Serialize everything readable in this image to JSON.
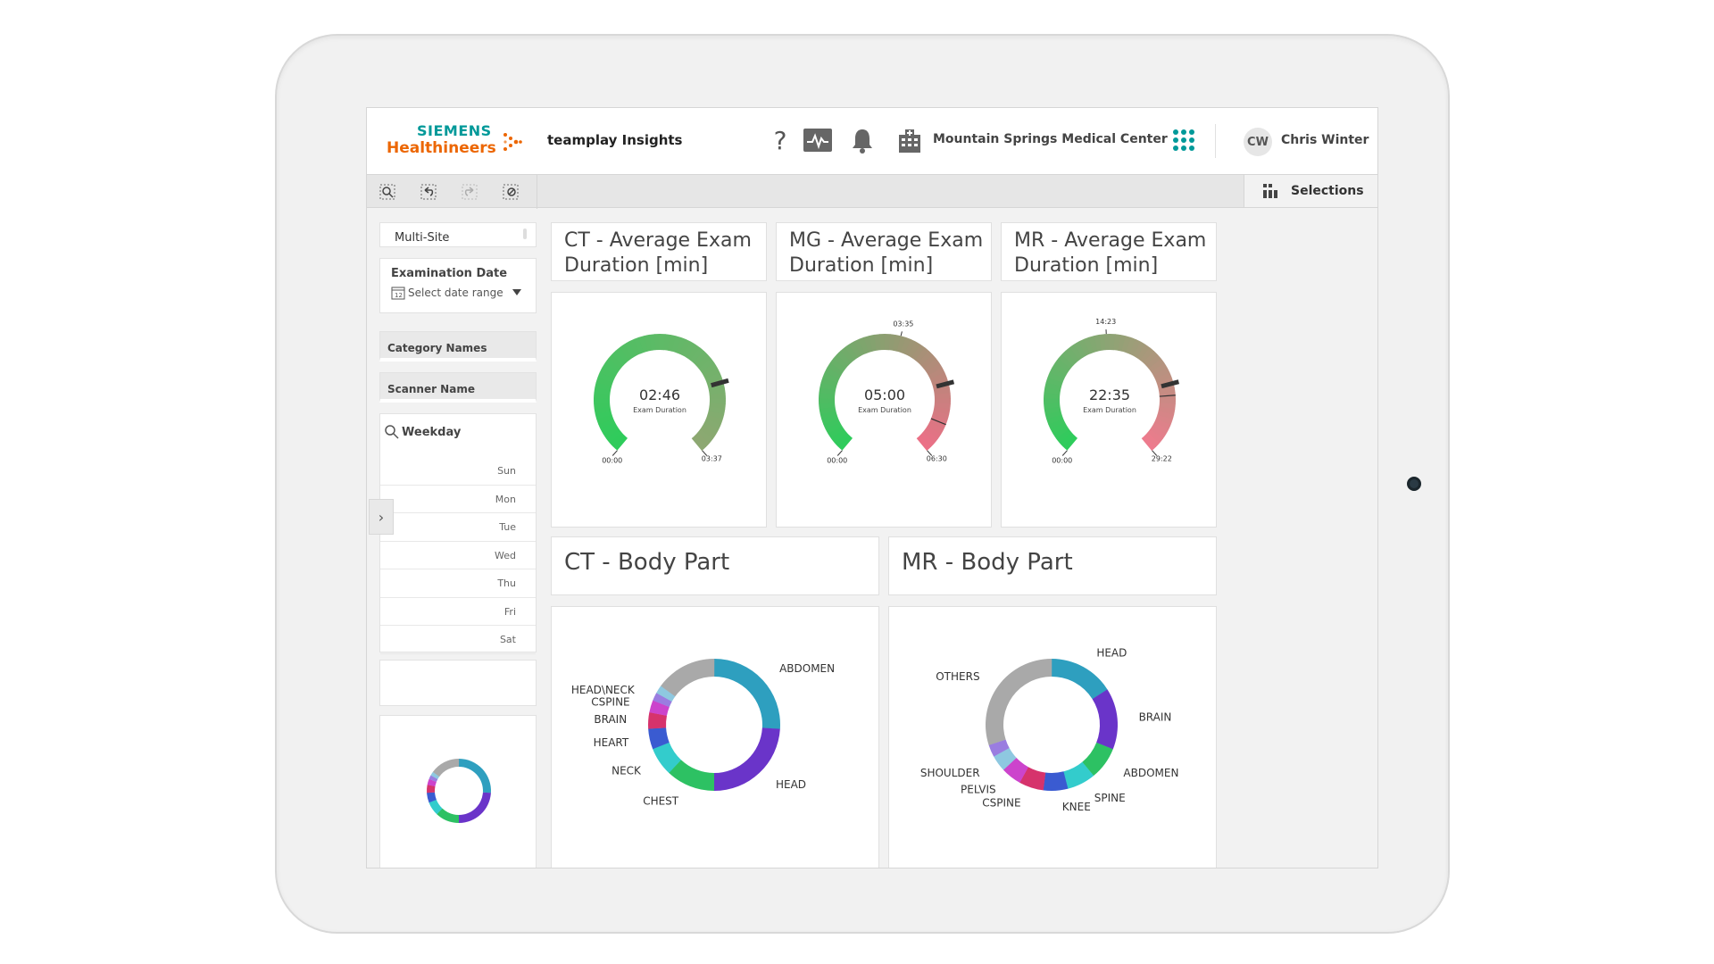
{
  "header": {
    "brand_line1": "SIEMENS",
    "brand_line2": "Healthineers",
    "app_title": "teamplay Insights",
    "help_label": "?",
    "site_name": "Mountain Springs Medical Center",
    "user_initials": "CW",
    "user_name": "Chris Winter"
  },
  "toolbar": {
    "tools": [
      "zoom-select-icon",
      "undo-icon",
      "redo-icon",
      "clear-selection-icon"
    ],
    "selections_label": "Selections"
  },
  "sidebar": {
    "multi_site": "Multi-Site",
    "exam_date_title": "Examination Date",
    "date_placeholder": "Select date range",
    "category_names": "Category Names",
    "scanner_name": "Scanner Name",
    "weekday_title": "Weekday",
    "weekdays": [
      "Sun",
      "Mon",
      "Tue",
      "Wed",
      "Thu",
      "Fri",
      "Sat"
    ],
    "toggle_label": "›"
  },
  "gauges": [
    {
      "title_line1": "CT - Average Exam",
      "title_line2": "Duration [min]",
      "value": "02:46",
      "value_min": 2.77,
      "sublabel": "Exam Duration",
      "min_label": "00:00",
      "max_label": "03:37",
      "max_min": 3.62,
      "ref_label": "",
      "ref_min": null,
      "extra_mark_min": null,
      "color_start": "#2ecc5b",
      "color_end": "#8fa772"
    },
    {
      "title_line1": "MG - Average Exam",
      "title_line2": "Duration [min]",
      "value": "05:00",
      "value_min": 5.0,
      "sublabel": "Exam Duration",
      "min_label": "00:00",
      "max_label": "06:30",
      "max_min": 6.5,
      "ref_label": "03:35",
      "ref_min": 3.58,
      "extra_mark_min": 5.85,
      "color_start": "#2ecc5b",
      "color_end": "#ee6e87"
    },
    {
      "title_line1": "MR - Average Exam",
      "title_line2": "Duration [min]",
      "value": "22:35",
      "value_min": 22.58,
      "sublabel": "Exam Duration",
      "min_label": "00:00",
      "max_label": "29:22",
      "max_min": 29.37,
      "ref_label": "14:23",
      "ref_min": 14.38,
      "extra_mark_min": 23.7,
      "color_start": "#2ecc5b",
      "color_end": "#f07a8e"
    }
  ],
  "donuts": [
    {
      "title": "CT - Body Part",
      "segments": [
        {
          "label": "ABDOMEN",
          "value": 26,
          "color": "#2e9fbf"
        },
        {
          "label": "HEAD",
          "value": 24,
          "color": "#6a34c9"
        },
        {
          "label": "CHEST",
          "value": 12,
          "color": "#2dc163"
        },
        {
          "label": "NECK",
          "value": 7,
          "color": "#33cccc"
        },
        {
          "label": "HEART",
          "value": 5,
          "color": "#3a5bd1"
        },
        {
          "label": "BRAIN",
          "value": 4,
          "color": "#d6336c"
        },
        {
          "label": "CSPINE",
          "value": 3,
          "color": "#cc44cc"
        },
        {
          "label": "HEAD\\NECK",
          "value": 2,
          "color": "#9a7de0"
        },
        {
          "label": "",
          "value": 2,
          "color": "#8ec8e0"
        },
        {
          "label": "",
          "value": 15,
          "color": "#a9a9a9"
        }
      ]
    },
    {
      "title": "MR - Body Part",
      "segments": [
        {
          "label": "HEAD",
          "value": 16,
          "color": "#2e9fbf"
        },
        {
          "label": "BRAIN",
          "value": 15,
          "color": "#6a34c9"
        },
        {
          "label": "ABDOMEN",
          "value": 8,
          "color": "#2dc163"
        },
        {
          "label": "SPINE",
          "value": 7,
          "color": "#33cccc"
        },
        {
          "label": "KNEE",
          "value": 6,
          "color": "#3a5bd1"
        },
        {
          "label": "CSPINE",
          "value": 6,
          "color": "#d6336c"
        },
        {
          "label": "PELVIS",
          "value": 5,
          "color": "#cc44cc"
        },
        {
          "label": "SHOULDER",
          "value": 4,
          "color": "#8ec8e0"
        },
        {
          "label": "",
          "value": 3,
          "color": "#9a7de0"
        },
        {
          "label": "OTHERS",
          "value": 30,
          "color": "#a9a9a9"
        }
      ]
    }
  ]
}
